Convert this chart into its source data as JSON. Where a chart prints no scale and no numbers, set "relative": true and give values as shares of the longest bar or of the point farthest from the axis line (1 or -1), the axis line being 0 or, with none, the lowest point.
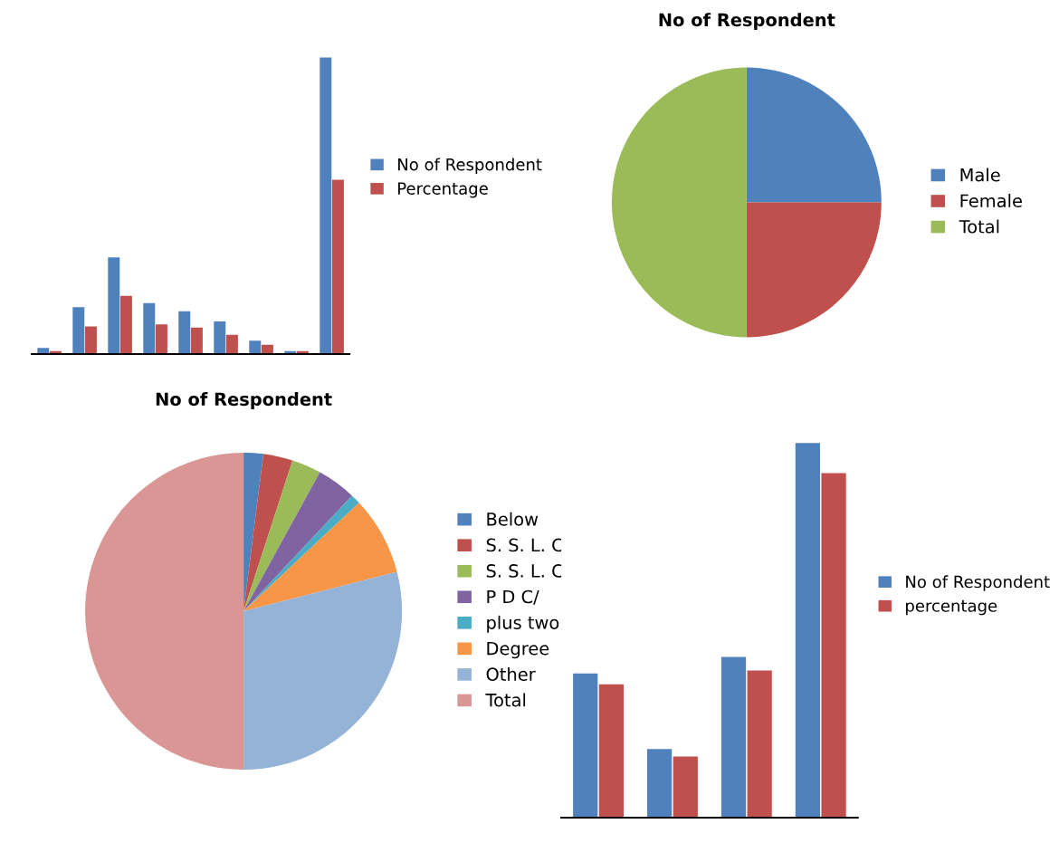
{
  "chart_data": [
    {
      "type": "bar",
      "relative": true,
      "categories": [
        null,
        null,
        null,
        null,
        null,
        null,
        null,
        null,
        null
      ],
      "legend": "right",
      "series": [
        {
          "name": "No of Respondent",
          "color": "#4f81bd",
          "values": [
            0.021,
            0.158,
            0.326,
            0.172,
            0.144,
            0.11,
            0.045,
            0.01,
            1
          ]
        },
        {
          "name": "Percentage",
          "color": "#c0504d",
          "values": [
            0.01,
            0.093,
            0.196,
            0.1,
            0.089,
            0.065,
            0.031,
            0.01,
            0.588
          ]
        }
      ]
    },
    {
      "type": "pie",
      "title": "No of Respondent",
      "legend": "right",
      "categories": [
        "Male",
        "Female",
        "Total"
      ],
      "values": [
        25,
        25,
        50
      ],
      "colors": [
        "#4f81bd",
        "#c0504d",
        "#9bbb59"
      ]
    },
    {
      "type": "pie",
      "title": "No of Respondent",
      "legend": "right",
      "categories": [
        "Below",
        "S. S. L. C",
        "S. S. L. C",
        "P D C/",
        "plus two",
        "Degree",
        "Other",
        "Total"
      ],
      "values": [
        2,
        3,
        3,
        4,
        1,
        8,
        29,
        50
      ],
      "colors": [
        "#4f81bd",
        "#c0504d",
        "#9bbb59",
        "#8064a2",
        "#4bacc6",
        "#f79646",
        "#95b3d7",
        "#d99694"
      ]
    },
    {
      "type": "bar",
      "relative": true,
      "categories": [
        null,
        null,
        null,
        null
      ],
      "legend": "right",
      "series": [
        {
          "name": "No of Respondent",
          "color": "#4f81bd",
          "values": [
            0.385,
            0.183,
            0.429,
            1
          ]
        },
        {
          "name": "percentage",
          "color": "#c0504d",
          "values": [
            0.356,
            0.163,
            0.393,
            0.92
          ]
        }
      ]
    }
  ]
}
